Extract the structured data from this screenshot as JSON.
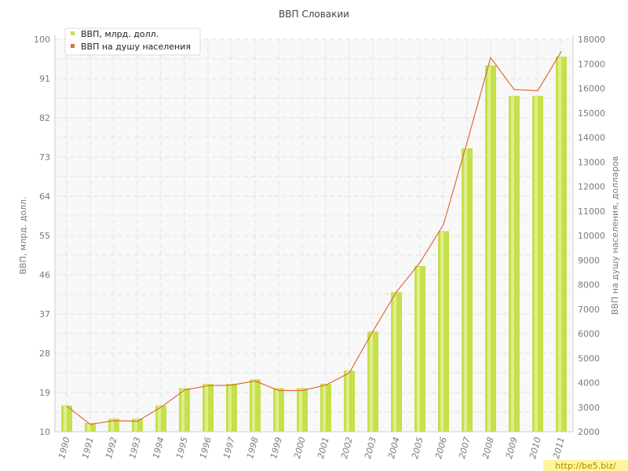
{
  "chart_data": {
    "type": "bar",
    "title": "ВВП Словакии",
    "categories": [
      "1990",
      "1991",
      "1992",
      "1993",
      "1994",
      "1995",
      "1996",
      "1997",
      "1998",
      "1999",
      "2000",
      "2001",
      "2002",
      "2003",
      "2004",
      "2005",
      "2006",
      "2007",
      "2008",
      "2009",
      "2010",
      "2011"
    ],
    "series": [
      {
        "name": "ВВП, млрд. долл.",
        "type": "bar",
        "axis": "left",
        "color": "#c5e04a",
        "values": [
          16,
          12,
          13,
          13,
          16,
          20,
          21,
          21,
          22,
          20,
          20,
          21,
          24,
          33,
          42,
          48,
          56,
          75,
          94,
          87,
          87,
          96
        ]
      },
      {
        "name": "ВВП на душу населения",
        "type": "line",
        "axis": "right",
        "color": "#e06a3c",
        "values": [
          3050,
          2300,
          2450,
          2430,
          3000,
          3700,
          3880,
          3900,
          4070,
          3680,
          3680,
          3900,
          4400,
          6100,
          7700,
          8900,
          10450,
          13800,
          17250,
          15950,
          15900,
          17500
        ]
      }
    ],
    "yleft": {
      "label": "ВВП, млрд. долл.",
      "min": 10,
      "max": 100,
      "ticks": [
        10,
        19,
        28,
        37,
        46,
        55,
        64,
        73,
        82,
        91,
        100
      ]
    },
    "yright": {
      "label": "ВВП на душу населения, долларов",
      "min": 2000,
      "max": 18000,
      "ticks": [
        2000,
        3000,
        4000,
        5000,
        6000,
        7000,
        8000,
        9000,
        10000,
        11000,
        12000,
        13000,
        14000,
        15000,
        16000,
        17000,
        18000
      ]
    },
    "grid": true,
    "legend_position": "top-left"
  },
  "watermark": "http://be5.biz/",
  "colors": {
    "grid": "#e2e2e2",
    "plot_bg": "#f8f8f8",
    "axis": "#cfcfcf"
  }
}
